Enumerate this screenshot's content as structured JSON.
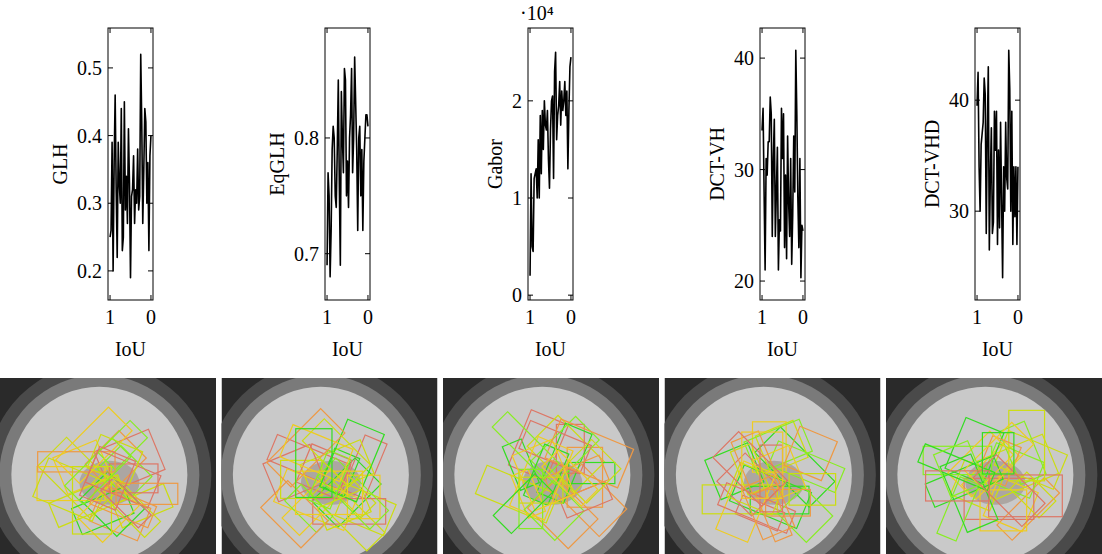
{
  "chart_data": [
    {
      "type": "line",
      "y_label": "GLH",
      "x_label": "IoU",
      "color": "#000000",
      "x": [
        1,
        0.975,
        0.95,
        0.925,
        0.9,
        0.875,
        0.85,
        0.825,
        0.8,
        0.775,
        0.75,
        0.725,
        0.7,
        0.675,
        0.65,
        0.625,
        0.6,
        0.575,
        0.55,
        0.525,
        0.5,
        0.475,
        0.45,
        0.425,
        0.4,
        0.375,
        0.35,
        0.325,
        0.3,
        0.275,
        0.25,
        0.225,
        0.2,
        0.175,
        0.15,
        0.125,
        0.1,
        0.075,
        0.05,
        0.025,
        0
      ],
      "values": [
        0.25,
        0.26,
        0.39,
        0.2,
        0.36,
        0.46,
        0.32,
        0.22,
        0.39,
        0.33,
        0.3,
        0.44,
        0.23,
        0.25,
        0.45,
        0.29,
        0.34,
        0.27,
        0.41,
        0.33,
        0.19,
        0.31,
        0.32,
        0.37,
        0.27,
        0.32,
        0.3,
        0.38,
        0.29,
        0.31,
        0.52,
        0.42,
        0.27,
        0.35,
        0.44,
        0.42,
        0.3,
        0.36,
        0.23,
        0.37,
        0.4
      ],
      "xlim": [
        1.05,
        -0.05
      ],
      "xticks": [
        1,
        0
      ],
      "ylim": [
        0.157,
        0.559
      ],
      "yticks": [
        0.2,
        0.3,
        0.4,
        0.5
      ]
    },
    {
      "type": "line",
      "y_label": "EqGLH",
      "x_label": "IoU",
      "color": "#000000",
      "x": [
        1,
        0.975,
        0.95,
        0.925,
        0.9,
        0.875,
        0.85,
        0.825,
        0.8,
        0.775,
        0.75,
        0.725,
        0.7,
        0.675,
        0.65,
        0.625,
        0.6,
        0.575,
        0.55,
        0.525,
        0.5,
        0.475,
        0.45,
        0.425,
        0.4,
        0.375,
        0.35,
        0.325,
        0.3,
        0.275,
        0.25,
        0.225,
        0.2,
        0.175,
        0.15,
        0.125,
        0.1,
        0.075,
        0.05,
        0.025,
        0
      ],
      "values": [
        0.69,
        0.77,
        0.75,
        0.68,
        0.72,
        0.79,
        0.81,
        0.8,
        0.75,
        0.74,
        0.79,
        0.85,
        0.76,
        0.69,
        0.84,
        0.8,
        0.77,
        0.86,
        0.85,
        0.75,
        0.78,
        0.74,
        0.8,
        0.82,
        0.86,
        0.77,
        0.8,
        0.87,
        0.83,
        0.79,
        0.72,
        0.8,
        0.81,
        0.75,
        0.79,
        0.72,
        0.78,
        0.8,
        0.82,
        0.82,
        0.81
      ],
      "xlim": [
        1.05,
        -0.05
      ],
      "xticks": [
        1,
        0
      ],
      "ylim": [
        0.66,
        0.895
      ],
      "yticks": [
        0.7,
        0.8
      ]
    },
    {
      "type": "line",
      "y_label": "Gabor",
      "x_label": "IoU",
      "y_multiplier": "·10⁴",
      "color": "#000000",
      "x": [
        1,
        0.975,
        0.95,
        0.925,
        0.9,
        0.875,
        0.85,
        0.825,
        0.8,
        0.775,
        0.75,
        0.725,
        0.7,
        0.675,
        0.65,
        0.625,
        0.6,
        0.575,
        0.55,
        0.525,
        0.5,
        0.475,
        0.45,
        0.425,
        0.4,
        0.375,
        0.35,
        0.325,
        0.3,
        0.275,
        0.25,
        0.225,
        0.2,
        0.175,
        0.15,
        0.125,
        0.1,
        0.075,
        0.05,
        0.025,
        0
      ],
      "values": [
        0.2,
        1.25,
        0.5,
        0.45,
        1.2,
        1.25,
        1.3,
        1.0,
        1.6,
        1.0,
        1.85,
        1.25,
        1.9,
        1.5,
        2.0,
        1.75,
        1.7,
        1.9,
        1.4,
        1.1,
        1.7,
        2.0,
        2.05,
        1.2,
        2.3,
        2.5,
        1.6,
        1.85,
        1.95,
        2.2,
        1.75,
        2.1,
        1.9,
        2.0,
        2.2,
        1.85,
        2.1,
        1.3,
        1.9,
        2.35,
        2.45
      ],
      "xlim": [
        1.05,
        -0.05
      ],
      "xticks": [
        1,
        0
      ],
      "ylim": [
        -0.05,
        2.75
      ],
      "yticks": [
        0,
        1,
        2
      ]
    },
    {
      "type": "line",
      "y_label": "DCT-VH",
      "x_label": "IoU",
      "color": "#000000",
      "x": [
        1,
        0.975,
        0.95,
        0.925,
        0.9,
        0.875,
        0.85,
        0.825,
        0.8,
        0.775,
        0.75,
        0.725,
        0.7,
        0.675,
        0.65,
        0.625,
        0.6,
        0.575,
        0.55,
        0.525,
        0.5,
        0.475,
        0.45,
        0.425,
        0.4,
        0.375,
        0.35,
        0.325,
        0.3,
        0.275,
        0.25,
        0.225,
        0.2,
        0.175,
        0.15,
        0.125,
        0.1,
        0.075,
        0.05,
        0.025,
        0
      ],
      "values": [
        33.5,
        35.5,
        28,
        21,
        31,
        29.5,
        32.5,
        32.5,
        36.5,
        35,
        24,
        31,
        34.5,
        24,
        28,
        32,
        21,
        25.5,
        24.5,
        35.5,
        31,
        35,
        23,
        29.5,
        22,
        33,
        27,
        24,
        31,
        21.5,
        26,
        33,
        28,
        40.7,
        35,
        27.5,
        23,
        31,
        20.3,
        25,
        24.5
      ],
      "xlim": [
        1.05,
        -0.05
      ],
      "xticks": [
        1,
        0
      ],
      "ylim": [
        18.3,
        42.7
      ],
      "yticks": [
        20,
        30,
        40
      ]
    },
    {
      "type": "line",
      "y_label": "DCT-VHD",
      "x_label": "IoU",
      "color": "#000000",
      "x": [
        1,
        0.975,
        0.95,
        0.925,
        0.9,
        0.875,
        0.85,
        0.825,
        0.8,
        0.775,
        0.75,
        0.725,
        0.7,
        0.675,
        0.65,
        0.625,
        0.6,
        0.575,
        0.55,
        0.525,
        0.5,
        0.475,
        0.45,
        0.425,
        0.4,
        0.375,
        0.35,
        0.325,
        0.3,
        0.275,
        0.25,
        0.225,
        0.2,
        0.175,
        0.15,
        0.125,
        0.1,
        0.075,
        0.05,
        0.025,
        0
      ],
      "values": [
        39.5,
        42.5,
        34,
        30,
        36,
        37,
        38,
        42,
        40.5,
        28,
        37,
        43,
        26.5,
        33,
        37.5,
        28,
        29,
        39,
        35.5,
        39,
        27,
        35.5,
        28.5,
        38,
        31,
        24,
        34,
        30,
        38,
        33,
        32,
        44.5,
        41,
        30,
        39,
        27,
        34,
        29.5,
        34,
        27,
        34
      ],
      "xlim": [
        1.05,
        -0.05
      ],
      "xticks": [
        1,
        0
      ],
      "ylim": [
        22,
        46.5
      ],
      "yticks": [
        30,
        40
      ]
    }
  ]
}
